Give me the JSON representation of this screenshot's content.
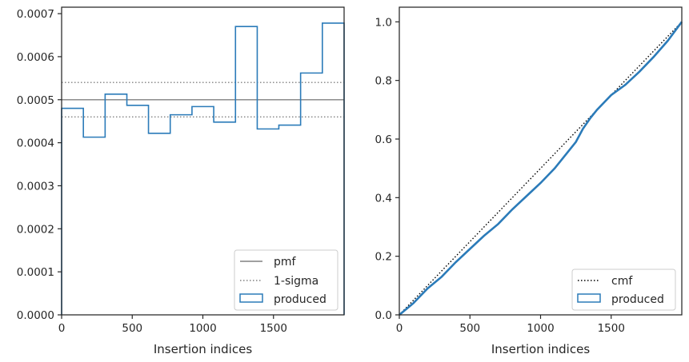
{
  "chart_data": [
    {
      "type": "step-histogram",
      "title": "",
      "xlabel": "Insertion indices",
      "ylabel": "",
      "xlim": [
        0,
        2000
      ],
      "ylim": [
        0,
        0.000715
      ],
      "xticks": [
        0,
        500,
        1000,
        1500
      ],
      "xtick_labels": [
        "0",
        "500",
        "1000",
        "1500"
      ],
      "yticks": [
        0,
        0.0001,
        0.0002,
        0.0003,
        0.0004,
        0.0005,
        0.0006,
        0.0007
      ],
      "ytick_labels": [
        "0.0000",
        "0.0001",
        "0.0002",
        "0.0003",
        "0.0004",
        "0.0005",
        "0.0006",
        "0.0007"
      ],
      "grid": false,
      "legend": "lower-right",
      "hlines": [
        {
          "name": "pmf",
          "y": 0.0005,
          "style": "solid",
          "color": "#808080"
        },
        {
          "name": "1-sigma",
          "y": 0.00054,
          "style": "dotted",
          "color": "#808080"
        },
        {
          "name": "",
          "y": 0.00046,
          "style": "dotted",
          "color": "#808080"
        }
      ],
      "series": [
        {
          "name": "produced",
          "color": "#2b7bb9",
          "bin_edges": [
            0,
            154,
            308,
            462,
            615,
            769,
            923,
            1077,
            1231,
            1385,
            1538,
            1692,
            1846,
            2000
          ],
          "values": [
            0.00048,
            0.000413,
            0.000513,
            0.000487,
            0.000422,
            0.000465,
            0.000484,
            0.000448,
            0.00067,
            0.000432,
            0.000441,
            0.000562,
            0.000678
          ]
        }
      ],
      "legend_labels": [
        "pmf",
        "1-sigma",
        "produced"
      ]
    },
    {
      "type": "line",
      "title": "",
      "xlabel": "Insertion indices",
      "ylabel": "",
      "xlim": [
        0,
        2000
      ],
      "ylim": [
        0,
        1.05
      ],
      "xticks": [
        0,
        500,
        1000,
        1500
      ],
      "xtick_labels": [
        "0",
        "500",
        "1000",
        "1500"
      ],
      "yticks": [
        0,
        0.2,
        0.4,
        0.6,
        0.8,
        1.0
      ],
      "ytick_labels": [
        "0.0",
        "0.2",
        "0.4",
        "0.6",
        "0.8",
        "1.0"
      ],
      "grid": false,
      "legend": "lower-right",
      "series": [
        {
          "name": "cmf",
          "style": "dotted",
          "color": "#000000",
          "x": [
            0,
            2000
          ],
          "y": [
            0,
            1.0
          ]
        },
        {
          "name": "produced",
          "style": "solid",
          "color": "#2b7bb9",
          "x": [
            0,
            100,
            200,
            300,
            400,
            500,
            600,
            700,
            800,
            900,
            1000,
            1100,
            1150,
            1200,
            1250,
            1300,
            1350,
            1400,
            1500,
            1600,
            1700,
            1800,
            1900,
            2000
          ],
          "y": [
            0,
            0.04,
            0.09,
            0.13,
            0.18,
            0.225,
            0.27,
            0.31,
            0.36,
            0.405,
            0.45,
            0.5,
            0.53,
            0.56,
            0.59,
            0.635,
            0.67,
            0.7,
            0.75,
            0.785,
            0.83,
            0.88,
            0.935,
            1.0
          ]
        }
      ],
      "legend_labels": [
        "cmf",
        "produced"
      ]
    }
  ]
}
